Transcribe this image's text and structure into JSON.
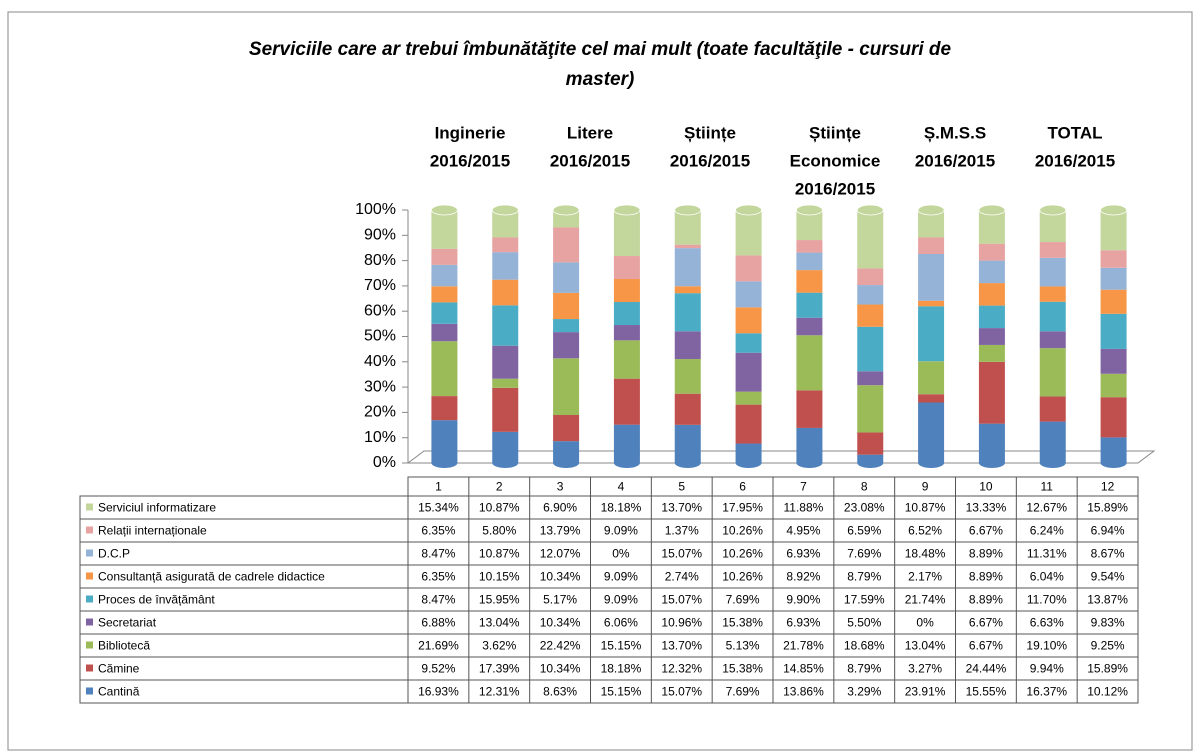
{
  "chart_data": {
    "type": "stacked_bar",
    "title_lines": [
      "Serviciile care ar trebui îmbunătăţite cel mai mult (toate facultăţile - cursuri de",
      "master)"
    ],
    "annotations": [
      {
        "lines": [
          "Inginerie",
          "2016/2015"
        ]
      },
      {
        "lines": [
          "Litere",
          "2016/2015"
        ]
      },
      {
        "lines": [
          "Științe",
          "2016/2015"
        ]
      },
      {
        "lines": [
          "Științe",
          "Economice",
          "2016/2015"
        ]
      },
      {
        "lines": [
          "Ș.M.S.S",
          "2016/2015"
        ]
      },
      {
        "lines": [
          "TOTAL",
          "2016/2015"
        ]
      }
    ],
    "categories": [
      "1",
      "2",
      "3",
      "4",
      "5",
      "6",
      "7",
      "8",
      "9",
      "10",
      "11",
      "12"
    ],
    "ylim": [
      0,
      100
    ],
    "yticks": [
      {
        "value": 0,
        "label": "0%"
      },
      {
        "value": 10,
        "label": "10%"
      },
      {
        "value": 20,
        "label": "20%"
      },
      {
        "value": 30,
        "label": "30%"
      },
      {
        "value": 40,
        "label": "40%"
      },
      {
        "value": 50,
        "label": "50%"
      },
      {
        "value": 60,
        "label": "60%"
      },
      {
        "value": 70,
        "label": "70%"
      },
      {
        "value": 80,
        "label": "80%"
      },
      {
        "value": 90,
        "label": "90%"
      },
      {
        "value": 100,
        "label": "100%"
      }
    ],
    "series": [
      {
        "name": "Cantină",
        "color": "#4f81bd",
        "values": [
          16.93,
          12.31,
          8.63,
          15.15,
          15.07,
          7.69,
          13.86,
          3.29,
          23.91,
          15.55,
          16.37,
          10.12
        ],
        "value_labels": [
          "16.93%",
          "12.31%",
          "8.63%",
          "15.15%",
          "15.07%",
          "7.69%",
          "13.86%",
          "3.29%",
          "23.91%",
          "15.55%",
          "16.37%",
          "10.12%"
        ]
      },
      {
        "name": "Cămine",
        "color": "#c0504d",
        "values": [
          9.52,
          17.39,
          10.34,
          18.18,
          12.32,
          15.38,
          14.85,
          8.79,
          3.27,
          24.44,
          9.94,
          15.89
        ],
        "value_labels": [
          "9.52%",
          "17.39%",
          "10.34%",
          "18.18%",
          "12.32%",
          "15.38%",
          "14.85%",
          "8.79%",
          "3.27%",
          "24.44%",
          "9.94%",
          "15.89%"
        ]
      },
      {
        "name": "Bibliotecă",
        "color": "#9bbb59",
        "values": [
          21.69,
          3.62,
          22.42,
          15.15,
          13.7,
          5.13,
          21.78,
          18.68,
          13.04,
          6.67,
          19.1,
          9.25
        ],
        "value_labels": [
          "21.69%",
          "3.62%",
          "22.42%",
          "15.15%",
          "13.70%",
          "5.13%",
          "21.78%",
          "18.68%",
          "13.04%",
          "6.67%",
          "19.10%",
          "9.25%"
        ]
      },
      {
        "name": "Secretariat",
        "color": "#8064a2",
        "values": [
          6.88,
          13.04,
          10.34,
          6.06,
          10.96,
          15.38,
          6.93,
          5.5,
          0,
          6.67,
          6.63,
          9.83
        ],
        "value_labels": [
          "6.88%",
          "13.04%",
          "10.34%",
          "6.06%",
          "10.96%",
          "15.38%",
          "6.93%",
          "5.50%",
          "0%",
          "6.67%",
          "6.63%",
          "9.83%"
        ]
      },
      {
        "name": "Proces de învățământ",
        "color": "#4bacc6",
        "values": [
          8.47,
          15.95,
          5.17,
          9.09,
          15.07,
          7.69,
          9.9,
          17.59,
          21.74,
          8.89,
          11.7,
          13.87
        ],
        "value_labels": [
          "8.47%",
          "15.95%",
          "5.17%",
          "9.09%",
          "15.07%",
          "7.69%",
          "9.90%",
          "17.59%",
          "21.74%",
          "8.89%",
          "11.70%",
          "13.87%"
        ]
      },
      {
        "name": "Consultanță asigurată de cadrele didactice",
        "color": "#f79646",
        "values": [
          6.35,
          10.15,
          10.34,
          9.09,
          2.74,
          10.26,
          8.92,
          8.79,
          2.17,
          8.89,
          6.04,
          9.54
        ],
        "value_labels": [
          "6.35%",
          "10.15%",
          "10.34%",
          "9.09%",
          "2.74%",
          "10.26%",
          "8.92%",
          "8.79%",
          "2.17%",
          "8.89%",
          "6.04%",
          "9.54%"
        ]
      },
      {
        "name": "D.C.P",
        "color": "#95b3d7",
        "values": [
          8.47,
          10.87,
          12.07,
          0,
          15.07,
          10.26,
          6.93,
          7.69,
          18.48,
          8.89,
          11.31,
          8.67
        ],
        "value_labels": [
          "8.47%",
          "10.87%",
          "12.07%",
          "0%",
          "15.07%",
          "10.26%",
          "6.93%",
          "7.69%",
          "18.48%",
          "8.89%",
          "11.31%",
          "8.67%"
        ]
      },
      {
        "name": "Relații internaționale",
        "color": "#e6a3a2",
        "values": [
          6.35,
          5.8,
          13.79,
          9.09,
          1.37,
          10.26,
          4.95,
          6.59,
          6.52,
          6.67,
          6.24,
          6.94
        ],
        "value_labels": [
          "6.35%",
          "5.80%",
          "13.79%",
          "9.09%",
          "1.37%",
          "10.26%",
          "4.95%",
          "6.59%",
          "6.52%",
          "6.67%",
          "6.24%",
          "6.94%"
        ]
      },
      {
        "name": "Serviciul informatizare",
        "color": "#c3d69b",
        "values": [
          15.34,
          10.87,
          6.9,
          18.18,
          13.7,
          17.95,
          11.88,
          23.08,
          10.87,
          13.33,
          12.67,
          15.89
        ],
        "value_labels": [
          "15.34%",
          "10.87%",
          "6.90%",
          "18.18%",
          "13.70%",
          "17.95%",
          "11.88%",
          "23.08%",
          "10.87%",
          "13.33%",
          "12.67%",
          "15.89%"
        ]
      }
    ]
  }
}
